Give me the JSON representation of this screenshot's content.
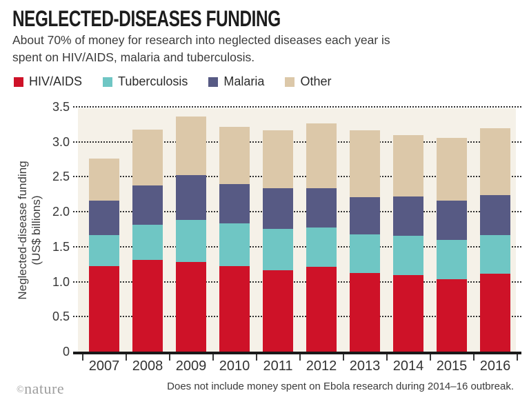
{
  "header": {
    "title": "NEGLECTED-DISEASES FUNDING",
    "subtitle_line1": "About 70% of money for research into neglected diseases each year is",
    "subtitle_line2": "spent on HIV/AIDS, malaria and tuberculosis."
  },
  "legend": [
    {
      "label": "HIV/AIDS",
      "color": "#ce1228"
    },
    {
      "label": "Tuberculosis",
      "color": "#6fc6c4"
    },
    {
      "label": "Malaria",
      "color": "#575a84"
    },
    {
      "label": "Other",
      "color": "#dcc8a9"
    }
  ],
  "chart_data": {
    "type": "bar",
    "stacked": true,
    "title": "NEGLECTED-DISEASES FUNDING",
    "categories": [
      "2007",
      "2008",
      "2009",
      "2010",
      "2011",
      "2012",
      "2013",
      "2014",
      "2015",
      "2016"
    ],
    "series": [
      {
        "name": "HIV/AIDS",
        "color": "#ce1228",
        "values": [
          1.22,
          1.31,
          1.28,
          1.22,
          1.16,
          1.21,
          1.12,
          1.09,
          1.04,
          1.11
        ]
      },
      {
        "name": "Tuberculosis",
        "color": "#6fc6c4",
        "values": [
          0.45,
          0.5,
          0.6,
          0.61,
          0.59,
          0.56,
          0.56,
          0.57,
          0.56,
          0.56
        ]
      },
      {
        "name": "Malaria",
        "color": "#575a84",
        "values": [
          0.49,
          0.57,
          0.64,
          0.57,
          0.59,
          0.57,
          0.53,
          0.56,
          0.56,
          0.57
        ]
      },
      {
        "name": "Other",
        "color": "#dcc8a9",
        "values": [
          0.6,
          0.79,
          0.84,
          0.81,
          0.82,
          0.92,
          0.95,
          0.88,
          0.9,
          0.95
        ]
      }
    ],
    "ylabel_line1": "Neglected-disease funding",
    "ylabel_line2": "(US$ billions)",
    "xlabel": "",
    "ylim": [
      0,
      3.5
    ],
    "ytick_step": 0.5,
    "ytick_labels": [
      "3.5",
      "3.0",
      "2.5",
      "2.0",
      "1.5",
      "1.0",
      "0.5",
      "0"
    ],
    "grid": "horizontal-dotted",
    "legend_position": "top",
    "plot_background": "#f5f1e8"
  },
  "footer": {
    "credit_symbol": "©",
    "credit_name": "nature",
    "note": "Does not include money spent on Ebola research during 2014–16 outbreak."
  }
}
